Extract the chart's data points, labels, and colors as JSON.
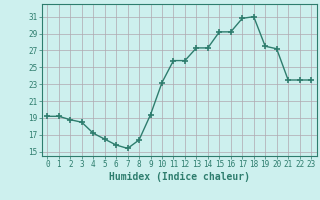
{
  "x": [
    0,
    1,
    2,
    3,
    4,
    5,
    6,
    7,
    8,
    9,
    10,
    11,
    12,
    13,
    14,
    15,
    16,
    17,
    18,
    19,
    20,
    21,
    22,
    23
  ],
  "y": [
    19.2,
    19.2,
    18.8,
    18.5,
    17.2,
    16.5,
    15.8,
    15.4,
    16.4,
    19.4,
    23.2,
    25.8,
    25.8,
    27.3,
    27.3,
    29.2,
    29.2,
    30.8,
    31.0,
    27.5,
    27.2,
    23.5,
    23.5,
    23.5
  ],
  "line_color": "#2e7d6e",
  "marker": "+",
  "markersize": 4,
  "markeredgewidth": 1.2,
  "bg_color": "#cdf0ee",
  "grid_color": "#b0a8b0",
  "xlabel": "Humidex (Indice chaleur)",
  "yticks": [
    15,
    17,
    19,
    21,
    23,
    25,
    27,
    29,
    31
  ],
  "xticks": [
    0,
    1,
    2,
    3,
    4,
    5,
    6,
    7,
    8,
    9,
    10,
    11,
    12,
    13,
    14,
    15,
    16,
    17,
    18,
    19,
    20,
    21,
    22,
    23
  ],
  "ylim": [
    14.5,
    32.5
  ],
  "xlim": [
    -0.5,
    23.5
  ],
  "tick_color": "#2e7d6e",
  "font_color": "#2e7d6e",
  "linewidth": 1.0,
  "xlabel_fontsize": 7.0,
  "tick_fontsize": 5.5
}
